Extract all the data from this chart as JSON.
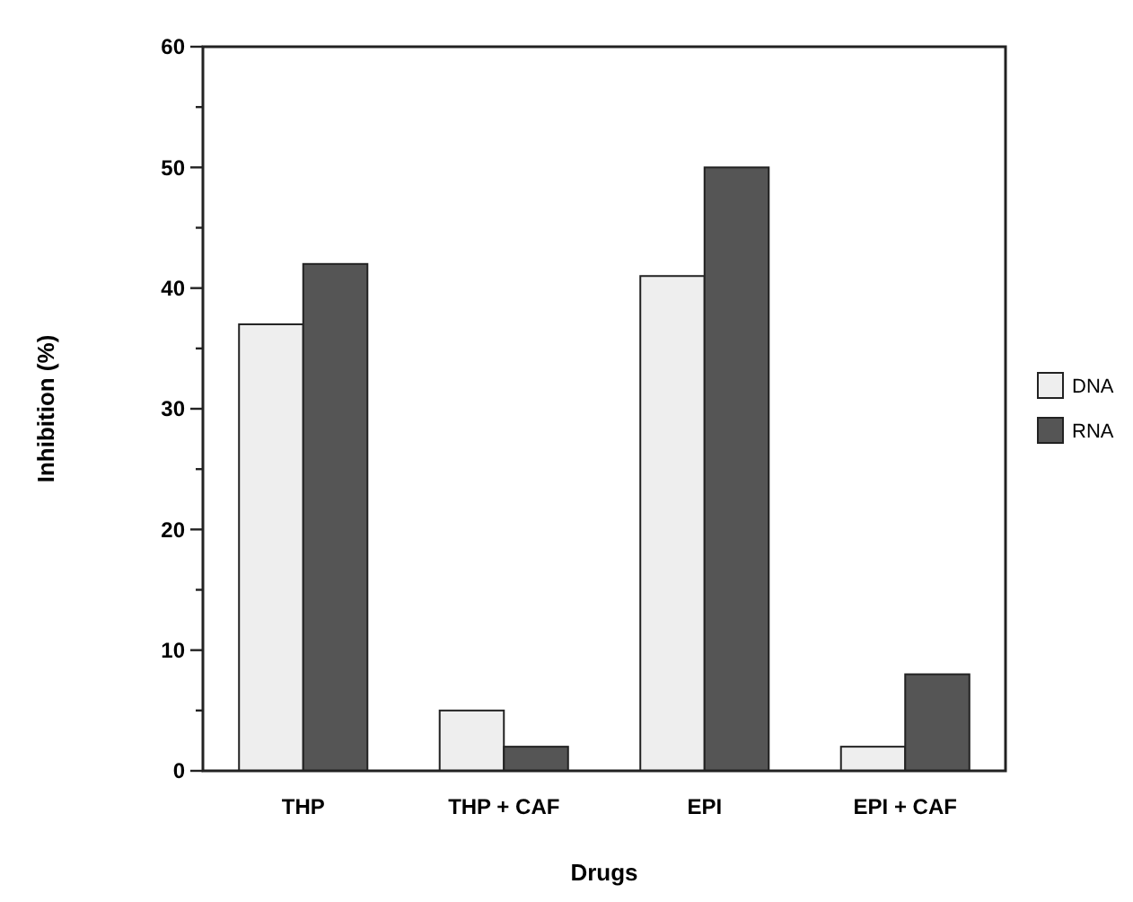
{
  "chart_data": {
    "type": "bar",
    "xlabel": "Drugs",
    "ylabel": "Inhibition (%)",
    "categories": [
      "THP",
      "THP + CAF",
      "EPI",
      "EPI + CAF"
    ],
    "series": [
      {
        "name": "DNA",
        "color": "#eeeeee",
        "values": [
          37,
          5,
          41,
          2
        ]
      },
      {
        "name": "RNA",
        "color": "#555555",
        "values": [
          42,
          2,
          50,
          8
        ]
      }
    ],
    "ylim": [
      0,
      60
    ],
    "yticks": [
      0,
      {
        "value": 5,
        "label": null
      },
      10,
      {
        "value": 15,
        "label": null
      },
      20,
      {
        "value": 25,
        "label": null
      },
      30,
      {
        "value": 35,
        "label": null
      },
      40,
      {
        "value": 45,
        "label": null
      },
      50,
      {
        "value": 55,
        "label": null
      },
      60
    ],
    "grid": false,
    "legend": "right"
  }
}
